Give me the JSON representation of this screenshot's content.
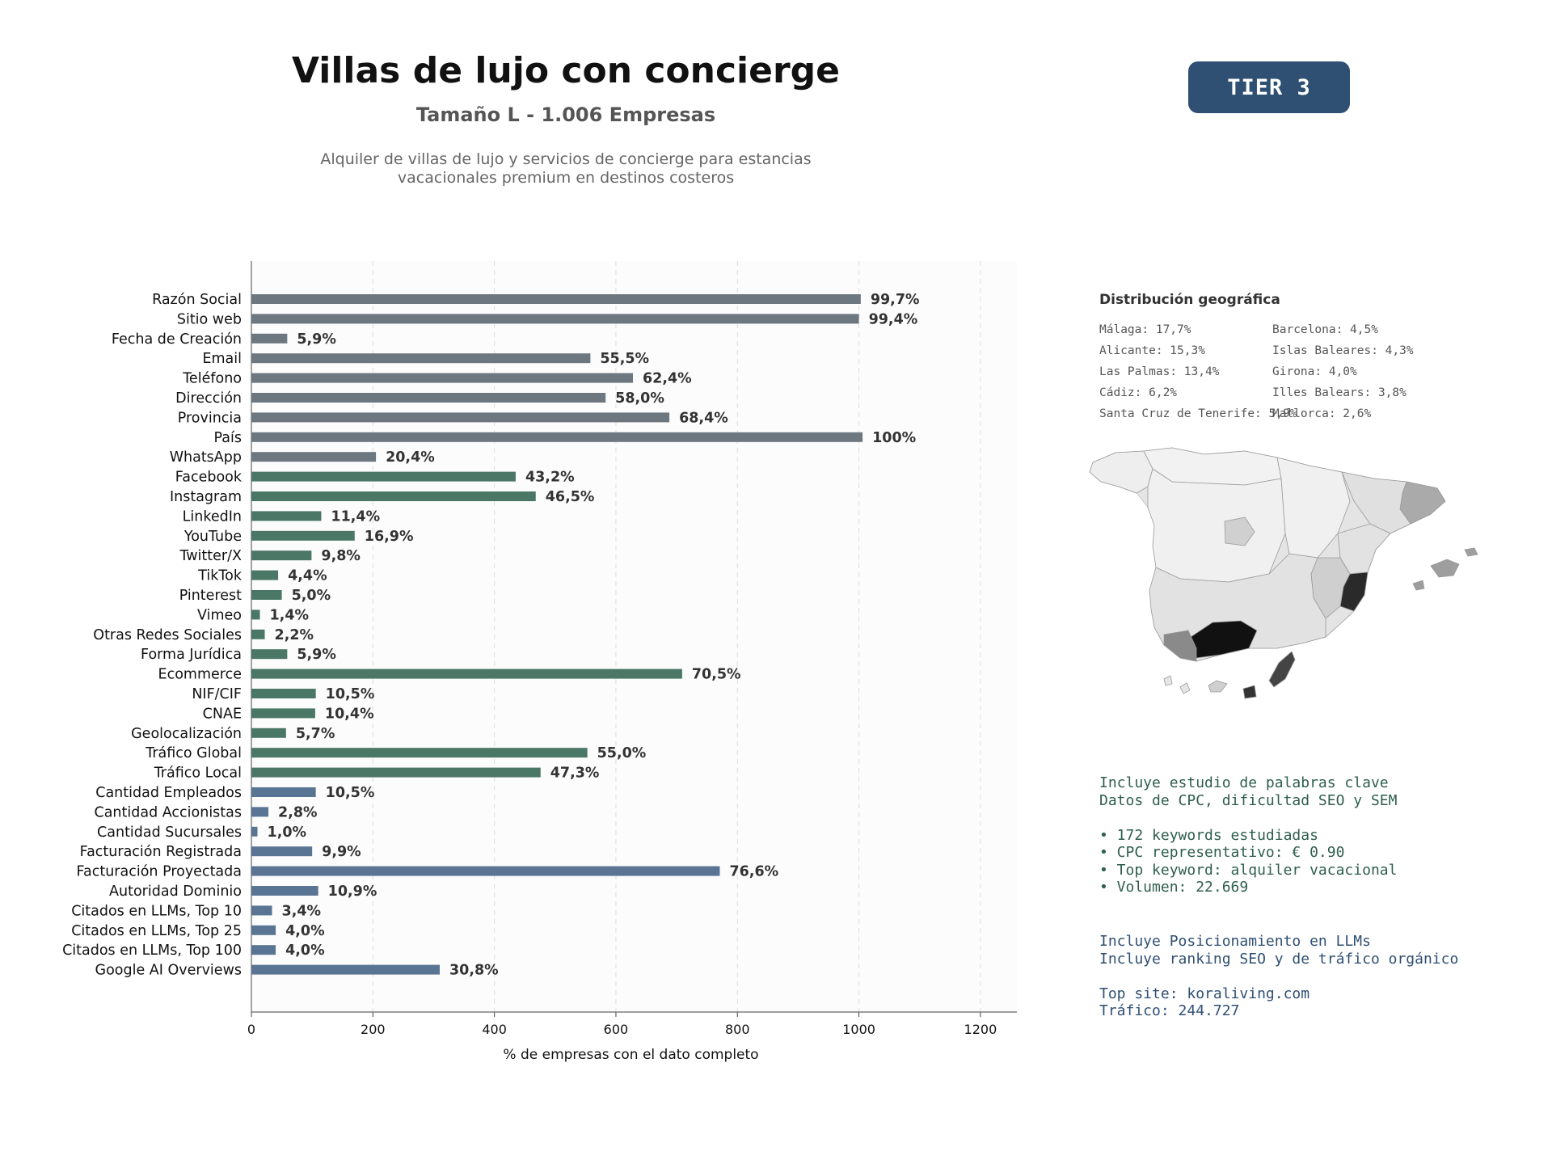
{
  "header": {
    "title": "Villas de lujo con concierge",
    "subtitle": "Tamaño L - 1.006 Empresas",
    "description_line1": "Alquiler de villas de lujo y servicios de concierge para estancias",
    "description_line2": "vacacionales premium en destinos costeros",
    "tier": "TIER 3"
  },
  "colors": {
    "gray": "#6c7780",
    "green": "#4a7766",
    "blue": "#5a7593",
    "tier_bg": "#2f4f73"
  },
  "chart_data": {
    "type": "bar",
    "orientation": "horizontal",
    "xlabel": "% de empresas con el dato completo",
    "xlim": [
      0,
      1260
    ],
    "xticks": [
      0,
      200,
      400,
      600,
      800,
      1000,
      1200
    ],
    "grid": "vertical-dashed",
    "categories": [
      "Razón Social",
      "Sitio web",
      "Fecha de Creación",
      "Email",
      "Teléfono",
      "Dirección",
      "Provincia",
      "País",
      "WhatsApp",
      "Facebook",
      "Instagram",
      "LinkedIn",
      "YouTube",
      "Twitter/X",
      "TikTok",
      "Pinterest",
      "Vimeo",
      "Otras Redes Sociales",
      "Forma Jurídica",
      "Ecommerce",
      "NIF/CIF",
      "CNAE",
      "Geolocalización",
      "Tráfico Global",
      "Tráfico Local",
      "Cantidad Empleados",
      "Cantidad Accionistas",
      "Cantidad Sucursales",
      "Facturación Registrada",
      "Facturación Proyectada",
      "Autoridad Dominio",
      "Citados en LLMs, Top 10",
      "Citados en LLMs, Top 25",
      "Citados en LLMs, Top 100",
      "Google AI Overviews"
    ],
    "values": [
      1003,
      1000,
      59,
      558,
      628,
      583,
      688,
      1006,
      205,
      435,
      468,
      115,
      170,
      99,
      44,
      50,
      14,
      22,
      59,
      709,
      106,
      105,
      57,
      553,
      476,
      106,
      28,
      10,
      100,
      771,
      110,
      34,
      40,
      40,
      310
    ],
    "labels": [
      "99,7%",
      "99,4%",
      "5,9%",
      "55,5%",
      "62,4%",
      "58,0%",
      "68,4%",
      "100%",
      "20,4%",
      "43,2%",
      "46,5%",
      "11,4%",
      "16,9%",
      "9,8%",
      "4,4%",
      "5,0%",
      "1,4%",
      "2,2%",
      "5,9%",
      "70,5%",
      "10,5%",
      "10,4%",
      "5,7%",
      "55,0%",
      "47,3%",
      "10,5%",
      "2,8%",
      "1,0%",
      "9,9%",
      "76,6%",
      "10,9%",
      "3,4%",
      "4,0%",
      "4,0%",
      "30,8%"
    ],
    "groups": [
      "gray",
      "gray",
      "gray",
      "gray",
      "gray",
      "gray",
      "gray",
      "gray",
      "gray",
      "green",
      "green",
      "green",
      "green",
      "green",
      "green",
      "green",
      "green",
      "green",
      "green",
      "green",
      "green",
      "green",
      "green",
      "green",
      "green",
      "blue",
      "blue",
      "blue",
      "blue",
      "blue",
      "blue",
      "blue",
      "blue",
      "blue",
      "blue"
    ]
  },
  "geo": {
    "title": "Distribución geográfica",
    "items": [
      "Málaga: 17,7%",
      "Barcelona: 4,5%",
      "Alicante: 15,3%",
      "Islas Baleares: 4,3%",
      "Las Palmas: 13,4%",
      "Girona: 4,0%",
      "Cádiz: 6,2%",
      "Illes Balears: 3,8%",
      "Santa Cruz de Tenerife: 5,9%",
      "Mallorca: 2,6%"
    ],
    "map_regions": [
      {
        "name": "Málaga",
        "level": "black"
      },
      {
        "name": "Alicante",
        "level": "very-dark"
      },
      {
        "name": "Las Palmas",
        "level": "very-dark"
      },
      {
        "name": "Santa Cruz de Tenerife",
        "level": "dark"
      },
      {
        "name": "Cádiz",
        "level": "medium-dark"
      },
      {
        "name": "Barcelona",
        "level": "medium"
      },
      {
        "name": "Girona",
        "level": "medium"
      },
      {
        "name": "Islas Baleares",
        "level": "medium"
      },
      {
        "name": "Murcia",
        "level": "light"
      },
      {
        "name": "Valencia",
        "level": "light"
      },
      {
        "name": "Madrid",
        "level": "light"
      }
    ]
  },
  "keywords": {
    "line1": "Incluye estudio de palabras clave",
    "line2": "Datos de CPC, dificultad SEO y SEM",
    "line3": "• 172 keywords estudiadas",
    "line4": "• CPC representativo: € 0.90",
    "line5": "• Top keyword: alquiler vacacional",
    "line6": "• Volumen: 22.669"
  },
  "llm": {
    "line1": "Incluye Posicionamiento en LLMs",
    "line2": "Incluye ranking SEO y de tráfico orgánico",
    "line3": "Top site: koraliving.com",
    "line4": "Tráfico: 244.727"
  }
}
